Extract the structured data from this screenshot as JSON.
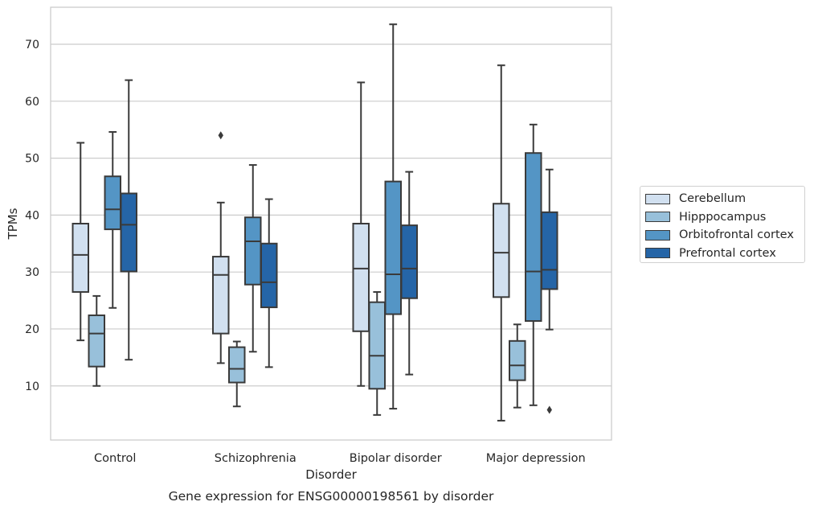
{
  "chart_data": {
    "type": "box",
    "title": "Gene expression for ENSG00000198561 by disorder",
    "xlabel": "Disorder",
    "ylabel": "TPMs",
    "ylim": [
      0.5,
      76.5
    ],
    "yticks": [
      10,
      20,
      30,
      40,
      50,
      60,
      70
    ],
    "grid": "horizontal",
    "legend_position": "right",
    "categories": [
      "Control",
      "Schizophrenia",
      "Bipolar disorder",
      "Major depression"
    ],
    "series": [
      {
        "name": "Cerebellum",
        "color": "#d1e0f0",
        "boxes": [
          {
            "whislo": 18.0,
            "q1": 26.5,
            "med": 33.0,
            "q3": 38.5,
            "whishi": 52.7,
            "fliers": []
          },
          {
            "whislo": 14.0,
            "q1": 19.2,
            "med": 29.5,
            "q3": 32.7,
            "whishi": 42.2,
            "fliers": [
              54.0
            ]
          },
          {
            "whislo": 10.0,
            "q1": 19.6,
            "med": 30.6,
            "q3": 38.5,
            "whishi": 63.3,
            "fliers": []
          },
          {
            "whislo": 3.9,
            "q1": 25.6,
            "med": 33.4,
            "q3": 42.0,
            "whishi": 66.3,
            "fliers": []
          }
        ]
      },
      {
        "name": "Hipppocampus",
        "color": "#98c0da",
        "boxes": [
          {
            "whislo": 10.0,
            "q1": 13.4,
            "med": 19.2,
            "q3": 22.4,
            "whishi": 25.8,
            "fliers": []
          },
          {
            "whislo": 6.4,
            "q1": 10.6,
            "med": 13.0,
            "q3": 16.8,
            "whishi": 17.8,
            "fliers": []
          },
          {
            "whislo": 4.9,
            "q1": 9.5,
            "med": 15.3,
            "q3": 24.7,
            "whishi": 26.5,
            "fliers": []
          },
          {
            "whislo": 6.2,
            "q1": 11.0,
            "med": 13.6,
            "q3": 17.9,
            "whishi": 20.8,
            "fliers": []
          }
        ]
      },
      {
        "name": "Orbitofrontal cortex",
        "color": "#5495c5",
        "boxes": [
          {
            "whislo": 23.7,
            "q1": 37.5,
            "med": 41.0,
            "q3": 46.8,
            "whishi": 54.6,
            "fliers": []
          },
          {
            "whislo": 16.0,
            "q1": 27.8,
            "med": 35.4,
            "q3": 39.6,
            "whishi": 48.8,
            "fliers": []
          },
          {
            "whislo": 6.0,
            "q1": 22.6,
            "med": 29.6,
            "q3": 45.9,
            "whishi": 73.5,
            "fliers": []
          },
          {
            "whislo": 6.6,
            "q1": 21.4,
            "med": 30.1,
            "q3": 50.9,
            "whishi": 55.9,
            "fliers": []
          }
        ]
      },
      {
        "name": "Prefrontal cortex",
        "color": "#2565a7",
        "boxes": [
          {
            "whislo": 14.6,
            "q1": 30.1,
            "med": 38.3,
            "q3": 43.8,
            "whishi": 63.7,
            "fliers": []
          },
          {
            "whislo": 13.3,
            "q1": 23.8,
            "med": 28.2,
            "q3": 35.0,
            "whishi": 42.8,
            "fliers": []
          },
          {
            "whislo": 12.0,
            "q1": 25.4,
            "med": 30.6,
            "q3": 38.2,
            "whishi": 47.6,
            "fliers": []
          },
          {
            "whislo": 19.9,
            "q1": 27.0,
            "med": 30.4,
            "q3": 40.5,
            "whishi": 48.0,
            "fliers": [
              5.8
            ]
          }
        ]
      }
    ]
  }
}
